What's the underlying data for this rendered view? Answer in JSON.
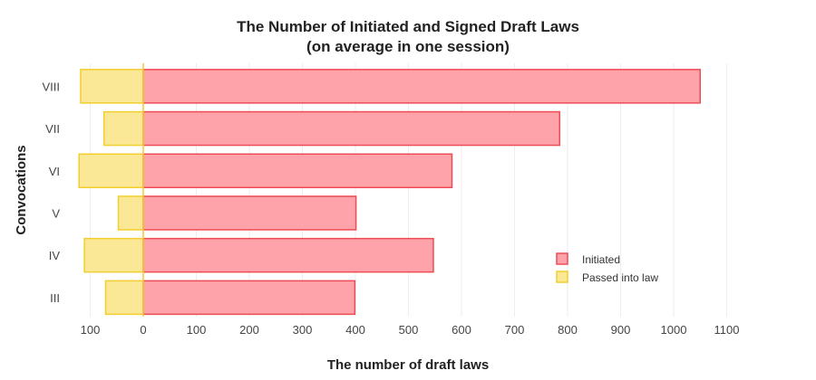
{
  "chart_data": {
    "type": "bar",
    "orientation": "horizontal",
    "title": [
      "The Number of Initiated and Signed Draft Laws",
      "(on average in one session)"
    ],
    "xlabel": "The number of draft laws",
    "ylabel": "Convocations",
    "categories": [
      "VIII",
      "VII",
      "VI",
      "V",
      "IV",
      "III"
    ],
    "series": [
      {
        "name": "Initiated",
        "values": [
          1050,
          785,
          582,
          401,
          547,
          399
        ],
        "fill": "#ffa3aa",
        "stroke": "#ee4c54"
      },
      {
        "name": "Passed into law",
        "values": [
          118,
          74,
          121,
          47,
          111,
          71
        ],
        "fill": "#fbe896",
        "stroke": "#f2ce2e",
        "direction": "left"
      }
    ],
    "x_ticks": [
      "100",
      "0",
      "100",
      "200",
      "300",
      "400",
      "500",
      "600",
      "700",
      "800",
      "900",
      "1000",
      "1100"
    ],
    "xlim": [
      -120,
      1150
    ],
    "grid": true,
    "legend": "bottom-right"
  }
}
